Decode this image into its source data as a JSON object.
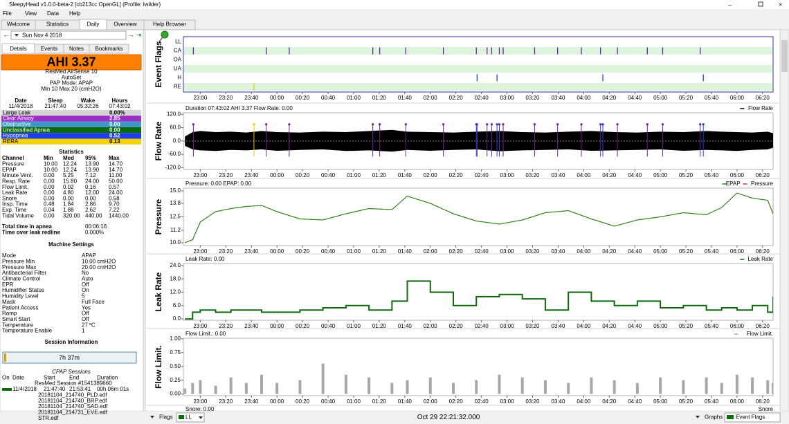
{
  "window": {
    "title": "SleepyHead v1.0.0-beta-2 [cb213cc OpenGL] (Profile: lwilder)"
  },
  "menu": [
    "File",
    "View",
    "Data",
    "Help"
  ],
  "tabs": [
    "Welcome",
    "Statistics",
    "Daily",
    "Overview",
    "Help Browser"
  ],
  "active_tab": 2,
  "date": "Sun Nov 4 2018",
  "detail_tabs": [
    "Details",
    "Events",
    "Notes",
    "Bookmarks"
  ],
  "active_detail_tab": 0,
  "ahi": "AHI 3.37",
  "machine": [
    "ResMed AirSense 10",
    "AutoSet",
    "PAP Mode: APAP",
    "Min 10 Max 20 (cmH2O)"
  ],
  "summary": {
    "headers": [
      "Date",
      "Sleep",
      "Wake",
      "Hours"
    ],
    "values": [
      "11/4/2018",
      "21:47:40",
      "05:32:26",
      "07:43:02"
    ]
  },
  "indices": [
    {
      "name": "Large Leak",
      "value": "0.00%",
      "color": "#d4d4d4"
    },
    {
      "name": "Clear Airway",
      "value": "2.85",
      "color": "#9a2fc8"
    },
    {
      "name": "Obstructive",
      "value": "0.00",
      "color": "#3f98c8"
    },
    {
      "name": "Unclassified Apnea",
      "value": "0.00",
      "color": "#0b6b0b"
    },
    {
      "name": "Hypopnea",
      "value": "0.52",
      "color": "#1e3cf0"
    },
    {
      "name": "RERA",
      "value": "0.13",
      "color": "#f2d20a"
    }
  ],
  "statistics": {
    "title": "Statistics",
    "headers": [
      "Channel",
      "Min",
      "Med",
      "95%",
      "Max"
    ],
    "rows": [
      [
        "Pressure",
        "10.00",
        "12.24",
        "13.90",
        "14.70"
      ],
      [
        "EPAP",
        "10.00",
        "12.24",
        "13.90",
        "14.70"
      ],
      [
        "Minute Vent.",
        "0.00",
        "5.25",
        "7.12",
        "11.00"
      ],
      [
        "Resp. Rate",
        "0.00",
        "15.80",
        "24.00",
        "50.00"
      ],
      [
        "Flow Limit.",
        "0.00",
        "0.02",
        "0.16",
        "0.57"
      ],
      [
        "Leak Rate",
        "0.00",
        "4.80",
        "12.00",
        "24.00"
      ],
      [
        "Snore",
        "0.00",
        "0.00",
        "0.00",
        "0.58"
      ],
      [
        "Insp. Time",
        "0.48",
        "1.84",
        "2.86",
        "9.70"
      ],
      [
        "Exp. Time",
        "0.04",
        "1.88",
        "2.62",
        "7.22"
      ],
      [
        "Tidal Volume",
        "0.00",
        "320.00",
        "440.00",
        "1440.00"
      ]
    ]
  },
  "totals": [
    [
      "Total time in apnea",
      "00:06:16"
    ],
    [
      "Time over leak redline",
      "0.000%"
    ]
  ],
  "machine_settings": {
    "title": "Machine Settings",
    "rows": [
      [
        "Mode",
        "APAP"
      ],
      [
        "Pressure Min",
        "10.00 cmH2O"
      ],
      [
        "Pressure Max",
        "20.00 cmH2O"
      ],
      [
        "Antibacterial Filter",
        "No"
      ],
      [
        "Climate Control",
        "Auto"
      ],
      [
        "EPR",
        "Off"
      ],
      [
        "Humidifier Status",
        "On"
      ],
      [
        "Humidity Level",
        "5"
      ],
      [
        "Mask",
        "Full Face"
      ],
      [
        "Patient Access",
        "Yes"
      ],
      [
        "Ramp",
        "Off"
      ],
      [
        "Smart Start",
        "Off"
      ],
      [
        "Temperature",
        "27 ºC"
      ],
      [
        "Temperature Enable",
        "1"
      ]
    ]
  },
  "session_info": {
    "title": "Session Information",
    "bar": "7h 37m"
  },
  "cpap_sessions": {
    "title": "CPAP Sessions",
    "headers": [
      "On",
      "Date",
      "Start",
      "End",
      "Duration"
    ],
    "session": "ResMed Session #1541389660",
    "row": [
      "11/4/2018",
      "21:47:40",
      "21:53:41",
      "00h 06m 01s"
    ],
    "files": [
      "20181104_214740_PLD.edf",
      "20181104_214740_BRP.edf",
      "20181104_214740_SAD.edf",
      "20181104_214731_EVE.edf",
      "STR.edf"
    ]
  },
  "graphs": {
    "xlim": [
      22.78,
      30.47
    ],
    "xticks": [
      {
        "value": 23,
        "label": "23:00"
      },
      {
        "value": 23.333,
        "label": "23:20"
      },
      {
        "value": 23.667,
        "label": "23:40"
      },
      {
        "value": 24,
        "label": "00:00"
      },
      {
        "value": 24.333,
        "label": "00:20"
      },
      {
        "value": 24.667,
        "label": "00:40"
      },
      {
        "value": 25,
        "label": "01:00"
      },
      {
        "value": 25.333,
        "label": "01:20"
      },
      {
        "value": 25.667,
        "label": "01:40"
      },
      {
        "value": 26,
        "label": "02:00"
      },
      {
        "value": 26.333,
        "label": "02:20"
      },
      {
        "value": 26.667,
        "label": "02:40"
      },
      {
        "value": 27,
        "label": "03:00"
      },
      {
        "value": 27.333,
        "label": "03:20"
      },
      {
        "value": 27.667,
        "label": "03:40"
      },
      {
        "value": 28,
        "label": "04:00"
      },
      {
        "value": 28.333,
        "label": "04:20"
      },
      {
        "value": 28.667,
        "label": "04:40"
      },
      {
        "value": 29,
        "label": "05:00"
      },
      {
        "value": 29.333,
        "label": "05:20"
      },
      {
        "value": 29.667,
        "label": "05:40"
      },
      {
        "value": 30,
        "label": "06:00"
      },
      {
        "value": 30.333,
        "label": "06:20"
      }
    ],
    "x": [
      22.8,
      22.9,
      23.0,
      23.2,
      23.4,
      23.6,
      23.8,
      24.0,
      24.3,
      24.6,
      24.9,
      25.2,
      25.5,
      25.7,
      26.0,
      26.3,
      26.6,
      26.9,
      27.2,
      27.5,
      27.8,
      28.1,
      28.4,
      28.7,
      29.0,
      29.3,
      29.6,
      29.8,
      30.0,
      30.2,
      30.4,
      30.47
    ],
    "charts": [
      {
        "type": "event_flags",
        "title": "Event Flags",
        "rows": [
          {
            "label": "LL",
            "color": "#909090",
            "x": []
          },
          {
            "label": "CA",
            "color": "#6a1f9a",
            "x": [
              22.91,
              23.86,
              24.16,
              25.25,
              25.34,
              25.68,
              26.17,
              26.6,
              26.74,
              26.8,
              26.9,
              26.95,
              27.36,
              27.66,
              27.97,
              28.22,
              28.44,
              28.83,
              29.03,
              29.52
            ]
          },
          {
            "label": "OA",
            "color": "#3f98c8",
            "x": []
          },
          {
            "label": "UA",
            "color": "#0b6b0b",
            "x": []
          },
          {
            "label": "H",
            "color": "#1e3cf0",
            "x": [
              26.61,
              26.87,
              28.25,
              29.56
            ]
          },
          {
            "label": "RE",
            "color": "#e8c800",
            "x": [
              23.7
            ]
          }
        ]
      },
      {
        "type": "band",
        "title": "Flow Rate",
        "header": "Duration 07:43:02 AHI 3.37 Flow Rate: 0.00",
        "ylim": [
          -128,
          127
        ],
        "yticks": [
          {
            "value": 120,
            "label": "120.0"
          },
          {
            "value": 60,
            "label": "60.0"
          },
          {
            "value": 0,
            "label": "0.0"
          },
          {
            "value": -60,
            "label": "-60.0"
          },
          {
            "value": -120,
            "label": "-120.0"
          }
        ],
        "series": [
          {
            "name": "Flow Rate",
            "color": "#000000",
            "upper": [
              20,
              40,
              45,
              40,
              42,
              38,
              45,
              40,
              38,
              42,
              40,
              45,
              50,
              42,
              40,
              38,
              42,
              45,
              40,
              38,
              42,
              45,
              40,
              38,
              42,
              40,
              45,
              42,
              40,
              38,
              42,
              35
            ],
            "lower": [
              -22,
              -38,
              -42,
              -45,
              -40,
              -42,
              -38,
              -44,
              -40,
              -38,
              -45,
              -42,
              -48,
              -40,
              -44,
              -40,
              -38,
              -46,
              -42,
              -40,
              -38,
              -44,
              -42,
              -40,
              -38,
              -44,
              -40,
              -42,
              -45,
              -40,
              -38,
              -30
            ]
          }
        ]
      },
      {
        "type": "line",
        "title": "Pressure",
        "header": "Pressure: 0.00 EPAP: 0.00",
        "ylim": [
          9.73,
          15.27
        ],
        "yticks": [
          {
            "value": 15,
            "label": "15.0"
          },
          13.8,
          12.5,
          11.2,
          {
            "value": 10,
            "label": "10.0"
          }
        ],
        "series": [
          {
            "name": "EPAP",
            "color": "#138a13",
            "values": [
              10.0,
              10.3,
              12.0,
              13.0,
              13.3,
              13.5,
              13.6,
              13.0,
              12.3,
              12.2,
              12.8,
              13.3,
              13.2,
              14.5,
              13.8,
              12.8,
              12.1,
              11.8,
              12.2,
              12.9,
              13.1,
              12.3,
              11.6,
              12.2,
              12.5,
              12.9,
              12.7,
              13.4,
              14.8,
              14.3,
              14.1,
              12.8
            ]
          },
          {
            "name": "Pressure",
            "color": "#e03030",
            "values": [
              10.0,
              10.3,
              12.0,
              13.0,
              13.3,
              13.5,
              13.6,
              13.0,
              12.3,
              12.2,
              12.8,
              13.3,
              13.2,
              14.5,
              13.8,
              12.8,
              12.1,
              11.8,
              12.2,
              12.9,
              13.1,
              12.3,
              11.6,
              12.2,
              12.5,
              12.9,
              12.7,
              13.4,
              14.8,
              14.3,
              14.1,
              12.8
            ]
          }
        ]
      },
      {
        "type": "step",
        "title": "Leak Rate",
        "header": "Leak Rate: 0.00",
        "ylim": [
          -0.6,
          24.9
        ],
        "yticks": [
          {
            "value": 24,
            "label": "24.0"
          },
          {
            "value": 18,
            "label": "18.0"
          },
          {
            "value": 12,
            "label": "12.0"
          },
          {
            "value": 6,
            "label": "6.0"
          },
          {
            "value": 0,
            "label": "0.0"
          }
        ],
        "series": [
          {
            "name": "Leak Rate",
            "color": "#0f6a0f",
            "values": [
              0,
              3,
              4,
              3,
              4,
              4,
              3,
              3,
              4,
              5,
              6,
              4,
              8,
              17,
              12,
              6,
              10,
              11,
              9,
              4,
              12,
              8,
              6,
              8,
              5,
              6,
              4,
              5,
              4,
              6,
              3,
              10
            ]
          }
        ]
      },
      {
        "type": "bars",
        "title": "Flow Limit.",
        "header": "Flow Limit.: 0.00",
        "ylim": [
          -0.03,
          1.01
        ],
        "yticks": [
          {
            "value": 1,
            "label": "1.00"
          },
          0.75,
          {
            "value": 0.5,
            "label": "0.50"
          },
          0.25,
          {
            "value": 0,
            "label": "0.00"
          }
        ],
        "series": [
          {
            "name": "Flow Limit.",
            "color": "#a8a8a8",
            "values": [
              0.1,
              0.2,
              0.25,
              0.15,
              0.3,
              0.2,
              0.35,
              0.2,
              0.25,
              0.55,
              0.35,
              0.3,
              0.2,
              0.25,
              0.3,
              0.2,
              0.25,
              0.35,
              0.3,
              0.25,
              0.2,
              0.3,
              0.25,
              0.2,
              0.3,
              0.25,
              0.3,
              0.2,
              0.35,
              0.3,
              0.25,
              0.2
            ]
          }
        ]
      }
    ],
    "partial_header": "Snore: 0.00",
    "partial_legend": "Snore"
  },
  "bottom_bar": {
    "flags": "Flags",
    "flag_select": "LL",
    "time": "Oct 29 22:21:32.000",
    "graphs": "Graphs",
    "graph_select": "Event Flags"
  }
}
